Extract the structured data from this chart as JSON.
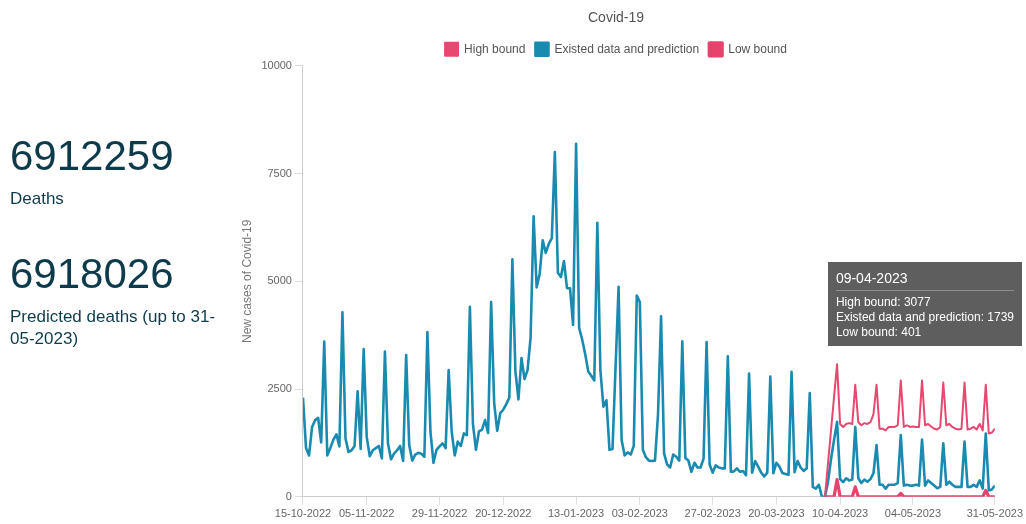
{
  "chart_data": {
    "type": "line",
    "title": "Covid-19",
    "ylabel": "New cases of Covid-19",
    "annotations": [
      "6912259",
      "Deaths",
      "6918026",
      "Predicted deaths (up to 31-05-2023)",
      "09-04-2023",
      "High bound: 3077",
      "Existed data and prediction: 1739",
      "Low bound: 401"
    ],
    "x": [
      "2022-10-15",
      "2022-10-16",
      "2022-10-17",
      "2022-10-18",
      "2022-10-19",
      "2022-10-20",
      "2022-10-21",
      "2022-10-22",
      "2022-10-23",
      "2022-10-24",
      "2022-10-25",
      "2022-10-26",
      "2022-10-27",
      "2022-10-28",
      "2022-10-29",
      "2022-10-30",
      "2022-10-31",
      "2022-11-01",
      "2022-11-02",
      "2022-11-03",
      "2022-11-04",
      "2022-11-05",
      "2022-11-06",
      "2022-11-07",
      "2022-11-08",
      "2022-11-09",
      "2022-11-10",
      "2022-11-11",
      "2022-11-12",
      "2022-11-13",
      "2022-11-14",
      "2022-11-15",
      "2022-11-16",
      "2022-11-17",
      "2022-11-18",
      "2022-11-19",
      "2022-11-20",
      "2022-11-21",
      "2022-11-22",
      "2022-11-23",
      "2022-11-24",
      "2022-11-25",
      "2022-11-26",
      "2022-11-27",
      "2022-11-28",
      "2022-11-29",
      "2022-11-30",
      "2022-12-01",
      "2022-12-02",
      "2022-12-03",
      "2022-12-04",
      "2022-12-05",
      "2022-12-06",
      "2022-12-07",
      "2022-12-08",
      "2022-12-09",
      "2022-12-10",
      "2022-12-11",
      "2022-12-12",
      "2022-12-13",
      "2022-12-14",
      "2022-12-15",
      "2022-12-16",
      "2022-12-17",
      "2022-12-18",
      "2022-12-19",
      "2022-12-20",
      "2022-12-21",
      "2022-12-22",
      "2022-12-23",
      "2022-12-24",
      "2022-12-25",
      "2022-12-26",
      "2022-12-27",
      "2022-12-28",
      "2022-12-29",
      "2022-12-30",
      "2022-12-31",
      "2023-01-01",
      "2023-01-02",
      "2023-01-03",
      "2023-01-04",
      "2023-01-05",
      "2023-01-06",
      "2023-01-07",
      "2023-01-08",
      "2023-01-09",
      "2023-01-10",
      "2023-01-11",
      "2023-01-12",
      "2023-01-13",
      "2023-01-14",
      "2023-01-15",
      "2023-01-16",
      "2023-01-17",
      "2023-01-18",
      "2023-01-19",
      "2023-01-20",
      "2023-01-21",
      "2023-01-22",
      "2023-01-23",
      "2023-01-24",
      "2023-01-25",
      "2023-01-26",
      "2023-01-27",
      "2023-01-28",
      "2023-01-29",
      "2023-01-30",
      "2023-01-31",
      "2023-02-01",
      "2023-02-02",
      "2023-02-03",
      "2023-02-04",
      "2023-02-05",
      "2023-02-06",
      "2023-02-07",
      "2023-02-08",
      "2023-02-09",
      "2023-02-10",
      "2023-02-11",
      "2023-02-12",
      "2023-02-13",
      "2023-02-14",
      "2023-02-15",
      "2023-02-16",
      "2023-02-17",
      "2023-02-18",
      "2023-02-19",
      "2023-02-20",
      "2023-02-21",
      "2023-02-22",
      "2023-02-23",
      "2023-02-24",
      "2023-02-25",
      "2023-02-26",
      "2023-02-27",
      "2023-02-28",
      "2023-03-01",
      "2023-03-02",
      "2023-03-03",
      "2023-03-04",
      "2023-03-05",
      "2023-03-06",
      "2023-03-07",
      "2023-03-08",
      "2023-03-09",
      "2023-03-10",
      "2023-03-11",
      "2023-03-12",
      "2023-03-13",
      "2023-03-14",
      "2023-03-15",
      "2023-03-16",
      "2023-03-17",
      "2023-03-18",
      "2023-03-19",
      "2023-03-20",
      "2023-03-21",
      "2023-03-22",
      "2023-03-23",
      "2023-03-24",
      "2023-03-25",
      "2023-03-26",
      "2023-03-27",
      "2023-03-28",
      "2023-03-29",
      "2023-03-30",
      "2023-03-31",
      "2023-04-01",
      "2023-04-02",
      "2023-04-03",
      "2023-04-04",
      "2023-04-05",
      "2023-04-06",
      "2023-04-07",
      "2023-04-08",
      "2023-04-09",
      "2023-04-10",
      "2023-04-11",
      "2023-04-12",
      "2023-04-13",
      "2023-04-14",
      "2023-04-15",
      "2023-04-16",
      "2023-04-17",
      "2023-04-18",
      "2023-04-19",
      "2023-04-20",
      "2023-04-21",
      "2023-04-22",
      "2023-04-23",
      "2023-04-24",
      "2023-04-25",
      "2023-04-26",
      "2023-04-27",
      "2023-04-28",
      "2023-04-29",
      "2023-04-30",
      "2023-05-01",
      "2023-05-02",
      "2023-05-03",
      "2023-05-04",
      "2023-05-05",
      "2023-05-06",
      "2023-05-07",
      "2023-05-08",
      "2023-05-09",
      "2023-05-10",
      "2023-05-11",
      "2023-05-12",
      "2023-05-13",
      "2023-05-14",
      "2023-05-15",
      "2023-05-16",
      "2023-05-17",
      "2023-05-18",
      "2023-05-19",
      "2023-05-20",
      "2023-05-21",
      "2023-05-22",
      "2023-05-23",
      "2023-05-24",
      "2023-05-25",
      "2023-05-26",
      "2023-05-27",
      "2023-05-28",
      "2023-05-29",
      "2023-05-30",
      "2023-05-31"
    ],
    "series": [
      {
        "name": "High bound",
        "color": "#e8476f",
        "x": [
          "2023-04-05",
          "2023-04-09",
          "2023-04-10",
          "2023-04-11",
          "2023-04-12",
          "2023-04-13",
          "2023-04-14",
          "2023-04-15",
          "2023-04-16",
          "2023-04-17",
          "2023-04-18",
          "2023-04-19",
          "2023-04-20",
          "2023-04-21",
          "2023-04-22",
          "2023-04-23",
          "2023-04-24",
          "2023-04-25",
          "2023-04-26",
          "2023-04-27",
          "2023-04-28",
          "2023-04-29",
          "2023-04-30",
          "2023-05-01",
          "2023-05-02",
          "2023-05-03",
          "2023-05-04",
          "2023-05-05",
          "2023-05-06",
          "2023-05-07",
          "2023-05-08",
          "2023-05-09",
          "2023-05-10",
          "2023-05-11",
          "2023-05-12",
          "2023-05-13",
          "2023-05-14",
          "2023-05-15",
          "2023-05-16",
          "2023-05-17",
          "2023-05-18",
          "2023-05-19",
          "2023-05-20",
          "2023-05-21",
          "2023-05-22",
          "2023-05-23",
          "2023-05-24",
          "2023-05-25",
          "2023-05-26",
          "2023-05-27",
          "2023-05-28",
          "2023-05-29",
          "2023-05-30",
          "2023-05-31"
        ],
        "values": [
          0,
          3077,
          1690,
          1620,
          1690,
          1710,
          1690,
          2600,
          1730,
          1660,
          1710,
          1690,
          1730,
          1920,
          2600,
          1580,
          1580,
          1540,
          1620,
          1620,
          1620,
          1660,
          2700,
          1620,
          1660,
          1620,
          1630,
          1620,
          1620,
          2700,
          1660,
          1690,
          1630,
          1580,
          1560,
          1620,
          2650,
          1660,
          1690,
          1620,
          1580,
          1560,
          1580,
          2650,
          1560,
          1580,
          1620,
          1560,
          1690,
          1540,
          2600,
          1470,
          1490,
          1580
        ]
      },
      {
        "name": "Existed data and prediction",
        "color": "#1a8bb0",
        "values": [
          2300,
          1130,
          960,
          1620,
          1780,
          1830,
          1260,
          3600,
          960,
          1130,
          1320,
          1450,
          1170,
          4280,
          1360,
          1040,
          1080,
          1180,
          2450,
          1110,
          3430,
          1390,
          940,
          1080,
          1130,
          1180,
          890,
          3370,
          1240,
          870,
          1000,
          1080,
          1180,
          830,
          3290,
          1200,
          840,
          980,
          1020,
          1000,
          930,
          3820,
          1510,
          790,
          1090,
          1170,
          1240,
          1130,
          2940,
          1510,
          960,
          1280,
          1180,
          1470,
          1430,
          4410,
          1690,
          1090,
          1520,
          1560,
          1780,
          1480,
          4520,
          2180,
          1530,
          1940,
          2020,
          2150,
          2300,
          5510,
          2910,
          2260,
          3220,
          2730,
          2940,
          3690,
          6510,
          4860,
          5170,
          5950,
          5660,
          5870,
          6000,
          8000,
          5200,
          5100,
          5470,
          4840,
          4840,
          3990,
          8190,
          3920,
          3650,
          3310,
          2910,
          2810,
          2700,
          6360,
          2940,
          2090,
          2240,
          1090,
          1110,
          3000,
          4870,
          1320,
          960,
          1030,
          980,
          1180,
          4670,
          4520,
          1090,
          920,
          840,
          830,
          840,
          1920,
          4190,
          1000,
          750,
          680,
          980,
          930,
          840,
          3610,
          900,
          840,
          580,
          790,
          680,
          680,
          880,
          3590,
          750,
          560,
          730,
          680,
          660,
          660,
          3260,
          580,
          590,
          660,
          580,
          600,
          500,
          2860,
          560,
          830,
          700,
          560,
          470,
          560,
          2790,
          550,
          790,
          700,
          550,
          530,
          510,
          2900,
          570,
          830,
          680,
          600,
          660,
          2410,
          230,
          190,
          280,
          0,
          0,
          340,
          870,
          1320,
          1739,
          410,
          340,
          430,
          380,
          400,
          1620,
          430,
          320,
          400,
          350,
          410,
          550,
          1200,
          280,
          280,
          190,
          280,
          280,
          280,
          320,
          1430,
          260,
          280,
          260,
          260,
          280,
          260,
          1330,
          260,
          380,
          320,
          260,
          200,
          230,
          1240,
          280,
          350,
          280,
          230,
          230,
          230,
          1280,
          230,
          230,
          280,
          230,
          380,
          190,
          1470,
          150,
          170,
          260
        ]
      },
      {
        "name": "Low bound",
        "color": "#e8436d",
        "x": [
          "2023-04-05",
          "2023-04-08",
          "2023-04-09",
          "2023-04-10",
          "2023-04-14",
          "2023-04-15",
          "2023-04-16",
          "2023-04-29",
          "2023-04-30",
          "2023-05-01",
          "2023-05-27",
          "2023-05-28",
          "2023-05-29",
          "2023-05-31"
        ],
        "values": [
          0,
          0,
          401,
          0,
          0,
          230,
          0,
          0,
          80,
          0,
          0,
          150,
          0,
          0
        ]
      }
    ],
    "xlim": [
      "2022-10-15",
      "2023-05-31"
    ],
    "xticks": [
      {
        "value": "2022-10-15",
        "label": "15-10-2022"
      },
      {
        "value": "2022-11-05",
        "label": "05-11-2022"
      },
      {
        "value": "2022-11-29",
        "label": "29-11-2022"
      },
      {
        "value": "2022-12-20",
        "label": "20-12-2022"
      },
      {
        "value": "2023-01-13",
        "label": "13-01-2023"
      },
      {
        "value": "2023-02-03",
        "label": "03-02-2023"
      },
      {
        "value": "2023-02-27",
        "label": "27-02-2023"
      },
      {
        "value": "2023-03-20",
        "label": "20-03-2023"
      },
      {
        "value": "2023-04-10",
        "label": "10-04-2023"
      },
      {
        "value": "2023-05-04",
        "label": "04-05-2023"
      },
      {
        "value": "2023-05-31",
        "label": "31-05-2023"
      }
    ],
    "ylim": [
      0,
      10000
    ],
    "yticks": [
      0,
      2500,
      5000,
      7500,
      10000
    ],
    "grid": false,
    "legend": "top",
    "marker": "none",
    "line_style": "solid"
  }
}
